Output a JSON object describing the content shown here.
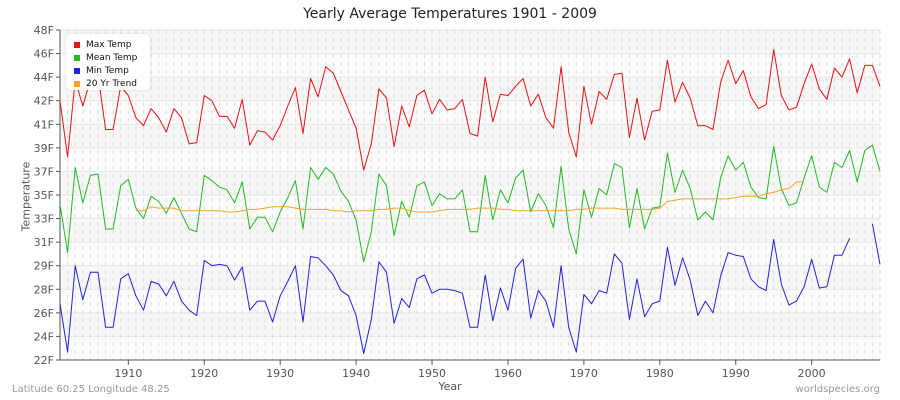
{
  "title": "Yearly Average Temperatures 1901 - 2009",
  "footer": {
    "left": "Latitude 60.25 Longitude 48.25",
    "right": "worldspecies.org"
  },
  "chart_data": {
    "type": "line",
    "title": "Yearly Average Temperatures 1901 - 2009",
    "xlabel": "Year",
    "ylabel": "Temperature",
    "ylim_F": [
      23.0,
      48.2
    ],
    "y_ticks": [
      "48F",
      "46F",
      "44F",
      "42F",
      "41F",
      "39F",
      "37F",
      "35F",
      "33F",
      "31F",
      "29F",
      "28F",
      "26F",
      "24F",
      "22F"
    ],
    "x_ticks": [
      "1910",
      "1920",
      "1930",
      "1940",
      "1950",
      "1960",
      "1970",
      "1980",
      "1990",
      "2000"
    ],
    "x_start": 1901,
    "x_end": 2009,
    "grid": true,
    "legend_position": "top-left",
    "series": [
      {
        "name": "Max Temp",
        "color": "#ee1111",
        "values": [
          42.8,
          38.5,
          44.4,
          42.4,
          44.4,
          44.8,
          40.6,
          40.6,
          43.9,
          43.2,
          41.5,
          40.9,
          42.2,
          41.5,
          40.4,
          42.2,
          41.5,
          39.5,
          39.6,
          43.2,
          42.8,
          41.6,
          41.6,
          40.7,
          42.9,
          39.4,
          40.5,
          40.4,
          39.8,
          40.9,
          42.4,
          43.8,
          40.3,
          44.5,
          43.1,
          45.4,
          44.9,
          43.5,
          42.1,
          40.7,
          37.5,
          39.5,
          43.7,
          43.0,
          39.3,
          42.4,
          40.8,
          43.2,
          43.6,
          41.8,
          42.9,
          42.1,
          42.2,
          42.9,
          40.3,
          40.1,
          44.6,
          41.2,
          43.3,
          43.2,
          43.9,
          44.5,
          42.4,
          43.3,
          41.5,
          40.7,
          45.4,
          40.4,
          38.5,
          43.9,
          41.0,
          43.5,
          42.9,
          44.8,
          44.9,
          40.0,
          43.0,
          39.8,
          42.0,
          42.1,
          45.9,
          42.7,
          44.2,
          43.0,
          40.9,
          40.9,
          40.6,
          44.2,
          45.9,
          44.1,
          45.1,
          43.1,
          42.2,
          42.5,
          46.7,
          43.2,
          42.1,
          42.3,
          44.1,
          45.6,
          43.7,
          42.9,
          45.3,
          44.6,
          46.0,
          43.4,
          45.5,
          45.5,
          43.9
        ]
      },
      {
        "name": "Mean Temp",
        "color": "#22bb22",
        "values": [
          34.9,
          31.2,
          37.7,
          35.0,
          37.1,
          37.2,
          33.0,
          33.0,
          36.3,
          36.8,
          34.6,
          33.8,
          35.5,
          35.1,
          34.2,
          35.4,
          34.2,
          33.0,
          32.8,
          37.1,
          36.7,
          36.2,
          36.0,
          35.0,
          36.6,
          33.0,
          33.9,
          33.9,
          32.8,
          34.3,
          35.4,
          36.7,
          33.0,
          37.7,
          36.8,
          37.7,
          37.2,
          35.9,
          35.1,
          33.7,
          30.5,
          32.8,
          37.2,
          36.3,
          32.5,
          35.1,
          33.9,
          36.3,
          36.6,
          34.8,
          35.7,
          35.3,
          35.3,
          36.0,
          32.8,
          32.8,
          37.1,
          33.7,
          36.0,
          35.0,
          36.9,
          37.5,
          34.3,
          35.7,
          34.8,
          33.1,
          37.8,
          33.0,
          31.1,
          36.0,
          33.9,
          36.1,
          35.6,
          38.0,
          37.7,
          33.1,
          36.1,
          33.0,
          34.6,
          34.7,
          38.8,
          35.8,
          37.5,
          36.1,
          33.7,
          34.3,
          33.7,
          36.9,
          38.6,
          37.5,
          38.1,
          36.2,
          35.4,
          35.3,
          39.3,
          36.1,
          34.8,
          35.0,
          36.9,
          38.6,
          36.2,
          35.8,
          38.1,
          37.7,
          39.0,
          36.6,
          39.0,
          39.4,
          37.4
        ]
      },
      {
        "name": "Min Temp",
        "color": "#2222dd",
        "values": [
          27.3,
          23.6,
          30.2,
          27.6,
          29.7,
          29.7,
          25.5,
          25.5,
          29.2,
          29.6,
          27.9,
          26.8,
          29.0,
          28.8,
          27.9,
          29.0,
          27.5,
          26.8,
          26.4,
          30.6,
          30.2,
          30.3,
          30.2,
          29.1,
          30.1,
          26.8,
          27.5,
          27.5,
          25.9,
          27.9,
          29.0,
          30.2,
          25.9,
          30.9,
          30.8,
          30.2,
          29.5,
          28.3,
          27.9,
          26.4,
          23.5,
          26.1,
          30.5,
          29.7,
          25.8,
          27.7,
          27.0,
          29.2,
          29.5,
          28.1,
          28.4,
          28.4,
          28.3,
          28.1,
          25.5,
          25.5,
          29.5,
          26.0,
          28.5,
          26.8,
          30.0,
          30.7,
          26.2,
          28.3,
          27.5,
          25.5,
          30.2,
          25.5,
          23.6,
          28.0,
          27.3,
          28.3,
          28.1,
          31.1,
          30.4,
          26.1,
          29.2,
          26.3,
          27.3,
          27.5,
          31.6,
          28.7,
          30.8,
          29.1,
          26.4,
          27.5,
          26.6,
          29.4,
          31.2,
          31.0,
          30.9,
          29.2,
          28.6,
          28.3,
          32.2,
          28.8,
          27.2,
          27.5,
          28.6,
          30.7,
          28.5,
          28.6,
          31.0,
          31.0,
          32.3,
          null,
          null,
          33.4,
          30.3
        ]
      },
      {
        "name": "20 Yr Trend",
        "color": "#ffa020",
        "start_year": 1911,
        "values": [
          34.4,
          34.4,
          34.7,
          34.6,
          34.6,
          34.6,
          34.4,
          34.4,
          34.4,
          34.4,
          34.4,
          34.4,
          34.3,
          34.3,
          34.4,
          34.5,
          34.5,
          34.6,
          34.7,
          34.7,
          34.7,
          34.6,
          34.5,
          34.5,
          34.5,
          34.5,
          34.4,
          34.4,
          34.3,
          34.4,
          34.4,
          34.4,
          34.5,
          34.5,
          34.6,
          34.6,
          34.4,
          34.3,
          34.3,
          34.3,
          34.4,
          34.5,
          34.5,
          34.5,
          34.5,
          34.6,
          34.6,
          34.6,
          34.5,
          34.5,
          34.4,
          34.4,
          34.4,
          34.4,
          34.4,
          34.4,
          34.4,
          34.4,
          34.5,
          34.5,
          34.6,
          34.6,
          34.6,
          34.6,
          34.5,
          34.5,
          34.5,
          34.5,
          34.5,
          34.6,
          35.1,
          35.2,
          35.3,
          35.3,
          35.3,
          35.3,
          35.3,
          35.3,
          35.3,
          35.4,
          35.5,
          35.5,
          35.5,
          35.7,
          35.8,
          36.0,
          36.1,
          36.6,
          36.6
        ]
      }
    ]
  }
}
